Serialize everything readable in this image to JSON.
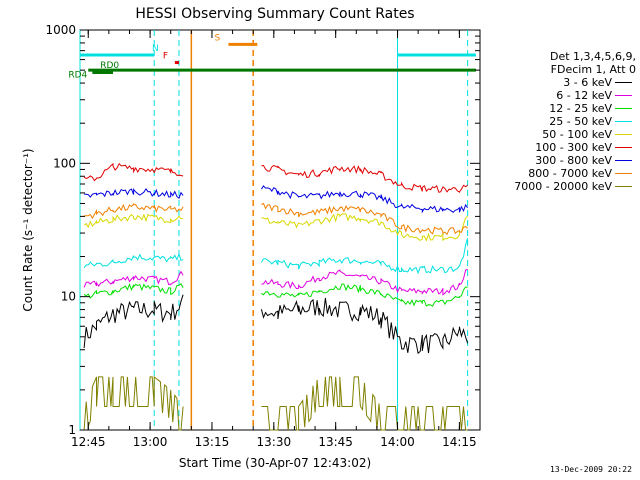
{
  "chart_data": {
    "type": "line",
    "title": "HESSI Observing Summary Count Rates",
    "xlabel": "Start Time (30-Apr-07 12:43:02)",
    "ylabel": "Count Rate (s⁻¹ detector⁻¹)",
    "yscale": "log",
    "ylim": [
      1,
      1000
    ],
    "xlim": [
      "12:43",
      "14:20"
    ],
    "x_ticks": [
      "12:45",
      "13:00",
      "13:15",
      "13:30",
      "13:45",
      "14:00",
      "14:15"
    ],
    "y_ticks": [
      "1",
      "10",
      "100",
      "1000"
    ],
    "grid": false,
    "legend_position": "right",
    "legend_header": [
      "Det 1,3,4,5,6,9,",
      "FDecim 1, Att 0"
    ],
    "timestamp": "13-Dec-2009 20:22",
    "colors": {
      "3 - 6 keV": "#000000",
      "6 - 12 keV": "#e000e0",
      "12 - 25 keV": "#00e000",
      "25 - 50 keV": "#00e0e0",
      "50 - 100 keV": "#d8d800",
      "100 - 300 keV": "#e00000",
      "300 - 800 keV": "#0000e0",
      "800 - 7000 keV": "#f08000",
      "7000 - 20000 keV": "#808000",
      "saa": "#00e0e0",
      "night": "#f08000",
      "flag_F": "#e00000",
      "decimation": "#007800"
    },
    "series": [
      {
        "name": "3 - 6 keV",
        "x": [
          "12:44",
          "12:47",
          "12:51",
          "12:56",
          "13:01",
          "13:05",
          "13:08",
          "13:27",
          "13:31",
          "13:36",
          "13:41",
          "13:46",
          "13:51",
          "13:56",
          "14:01",
          "14:06",
          "14:11",
          "14:15",
          "14:17"
        ],
        "values": [
          5,
          6,
          7.5,
          8,
          8,
          7.5,
          9,
          8,
          7.5,
          8,
          8.5,
          8,
          8,
          7,
          4.5,
          4.5,
          4.5,
          5.5,
          5
        ]
      },
      {
        "name": "6 - 12 keV",
        "x": [
          "12:44",
          "12:47",
          "12:51",
          "12:56",
          "13:01",
          "13:05",
          "13:08",
          "13:27",
          "13:31",
          "13:36",
          "13:41",
          "13:46",
          "13:51",
          "13:56",
          "14:01",
          "14:06",
          "14:11",
          "14:15",
          "14:17"
        ],
        "values": [
          12,
          12.5,
          13,
          14,
          13.5,
          13,
          15,
          13,
          12.5,
          12,
          14,
          15,
          14,
          13,
          11,
          11,
          11,
          12,
          17
        ]
      },
      {
        "name": "12 - 25 keV",
        "x": [
          "12:44",
          "12:47",
          "12:51",
          "12:56",
          "13:01",
          "13:05",
          "13:08",
          "13:27",
          "13:31",
          "13:36",
          "13:41",
          "13:46",
          "13:51",
          "13:56",
          "14:01",
          "14:06",
          "14:11",
          "14:15",
          "14:17"
        ],
        "values": [
          10,
          10.5,
          11,
          12,
          11.5,
          11,
          12,
          11,
          10.5,
          10,
          11,
          12,
          11.5,
          10.5,
          9,
          9,
          9,
          10,
          12
        ]
      },
      {
        "name": "25 - 50 keV",
        "x": [
          "12:44",
          "12:47",
          "12:51",
          "12:56",
          "13:01",
          "13:05",
          "13:08",
          "13:27",
          "13:31",
          "13:36",
          "13:41",
          "13:46",
          "13:51",
          "13:56",
          "14:01",
          "14:06",
          "14:11",
          "14:15",
          "14:17"
        ],
        "values": [
          17,
          17.5,
          18,
          20,
          19.5,
          19,
          20,
          18.5,
          18,
          17,
          18,
          19,
          18.5,
          17.5,
          16,
          16,
          16,
          16.5,
          26
        ]
      },
      {
        "name": "50 - 100 keV",
        "x": [
          "12:44",
          "12:47",
          "12:51",
          "12:56",
          "13:01",
          "13:05",
          "13:08",
          "13:27",
          "13:31",
          "13:36",
          "13:41",
          "13:46",
          "13:51",
          "13:56",
          "14:01",
          "14:06",
          "14:11",
          "14:15",
          "14:17"
        ],
        "values": [
          34,
          36,
          38,
          40,
          39,
          38,
          40,
          38,
          36,
          34,
          37,
          40,
          39,
          36,
          29,
          28,
          28,
          29,
          42
        ]
      },
      {
        "name": "100 - 300 keV",
        "x": [
          "12:44",
          "12:47",
          "12:51",
          "12:56",
          "13:01",
          "13:05",
          "13:08",
          "13:27",
          "13:31",
          "13:36",
          "13:41",
          "13:46",
          "13:51",
          "13:56",
          "14:01",
          "14:06",
          "14:11",
          "14:15",
          "14:17"
        ],
        "values": [
          75,
          78,
          95,
          92,
          90,
          87,
          85,
          95,
          90,
          82,
          85,
          92,
          90,
          82,
          68,
          65,
          64,
          64,
          66
        ]
      },
      {
        "name": "300 - 800 keV",
        "x": [
          "12:44",
          "12:47",
          "12:51",
          "12:56",
          "13:01",
          "13:05",
          "13:08",
          "13:27",
          "13:31",
          "13:36",
          "13:41",
          "13:46",
          "13:51",
          "13:56",
          "14:01",
          "14:06",
          "14:11",
          "14:15",
          "14:17"
        ],
        "values": [
          56,
          58,
          60,
          62,
          60,
          58,
          58,
          65,
          62,
          56,
          57,
          60,
          59,
          55,
          47,
          46,
          45,
          45,
          47
        ]
      },
      {
        "name": "800 - 7000 keV",
        "x": [
          "12:44",
          "12:47",
          "12:51",
          "12:56",
          "13:01",
          "13:05",
          "13:08",
          "13:27",
          "13:31",
          "13:36",
          "13:41",
          "13:46",
          "13:51",
          "13:56",
          "14:01",
          "14:06",
          "14:11",
          "14:15",
          "14:17"
        ],
        "values": [
          40,
          42,
          45,
          47,
          46,
          45,
          45,
          48,
          46,
          42,
          43,
          46,
          45,
          41,
          33,
          32,
          31,
          31,
          33
        ]
      },
      {
        "name": "7000 - 20000 keV",
        "x": [
          "12:44",
          "12:47",
          "12:51",
          "12:56",
          "13:01",
          "13:05",
          "13:08",
          "13:27",
          "13:31",
          "13:36",
          "13:41",
          "13:46",
          "13:51",
          "13:56",
          "14:01",
          "14:06",
          "14:11",
          "14:15",
          "14:17"
        ],
        "values": [
          1.5,
          2.5,
          2.5,
          2.5,
          2.5,
          2,
          1.5,
          1.5,
          1.5,
          1.5,
          2.5,
          2.5,
          2.5,
          1.5,
          1.5,
          1.5,
          1.5,
          1.5,
          1.5
        ]
      }
    ],
    "flags": {
      "N": {
        "label": "N",
        "value": 650,
        "segments": [
          [
            "12:43",
            "13:01"
          ],
          [
            "14:00",
            "14:19"
          ]
        ]
      },
      "S": {
        "label": "S",
        "value": 780,
        "segments": [
          [
            "13:19",
            "13:26"
          ]
        ]
      },
      "F": {
        "label": "F",
        "value": 570,
        "segments": [
          [
            "13:06",
            "13:07"
          ]
        ]
      },
      "RD0": {
        "label": "RD0",
        "value": 500,
        "segments": [
          [
            "12:45",
            "14:19"
          ]
        ]
      },
      "RD4": {
        "label": "RD4",
        "value": 480,
        "segments": [
          [
            "12:46",
            "12:51"
          ]
        ]
      }
    },
    "saa_boundaries": [
      "12:43",
      "13:01",
      "13:07",
      "14:00",
      "14:17"
    ],
    "night_boundaries": [
      "13:10",
      "13:25"
    ]
  }
}
